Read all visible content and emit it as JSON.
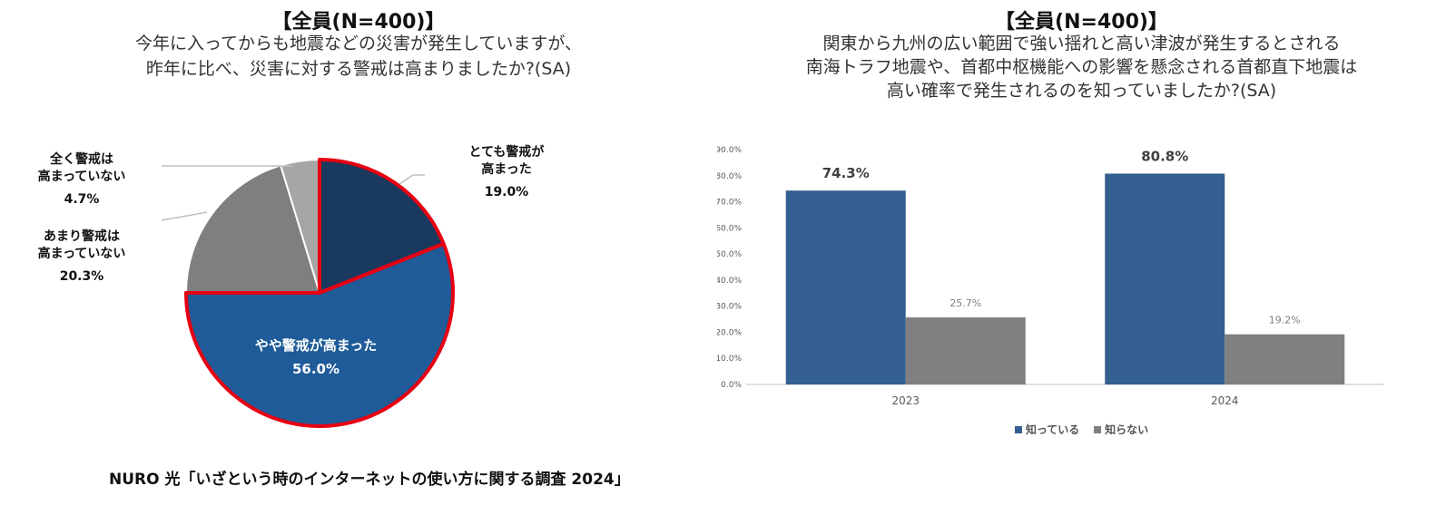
{
  "left": {
    "header": "【全員(N=400)】",
    "question": [
      "今年に入ってからも地震などの災害が発生していますが、",
      "昨年に比べ、災害に対する警戒は高まりましたか?(SA)"
    ]
  },
  "right": {
    "header": "【全員(N=400)】",
    "question": [
      "関東から九州の広い範囲で強い揺れと高い津波が発生するとされる",
      "南海トラフ地震や、首都中枢機能への影響を懸念される首都直下地震は",
      "高い確率で発生されるのを知っていましたか?(SA)"
    ]
  },
  "source": "NURO 光「いざという時のインターネットの使い方に関する調査 2024」",
  "chart_data": [
    {
      "type": "pie",
      "title": "今年に入ってからも地震などの災害が発生していますが、昨年に比べ、災害に対する警戒は高まりましたか?(SA)",
      "slices": [
        {
          "label": "とても警戒が\n高まった",
          "value": 19.0,
          "pct": "19.0%",
          "color": "#193a5e"
        },
        {
          "label": "やや警戒が高まった",
          "value": 56.0,
          "pct": "56.0%",
          "color": "#1f5b99"
        },
        {
          "label": "あまり警戒は\n高まっていない",
          "value": 20.3,
          "pct": "20.3%",
          "color": "#7f7f7f"
        },
        {
          "label": "全く警戒は\n高まっていない",
          "value": 4.7,
          "pct": "4.7%",
          "color": "#a6a6a6"
        }
      ],
      "highlight_color": "#e60012"
    },
    {
      "type": "bar",
      "title": "関東から九州の広い範囲で強い揺れと高い津波が発生するとされる南海トラフ地震や、首都中枢機能への影響を懸念される首都直下地震は高い確率で発生されるのを知っていましたか?(SA)",
      "categories": [
        "2023",
        "2024"
      ],
      "series": [
        {
          "name": "知っている",
          "values": [
            74.3,
            80.8
          ],
          "labels": [
            "74.3%",
            "80.8%"
          ],
          "color": "#335f91"
        },
        {
          "name": "知らない",
          "values": [
            25.7,
            19.2
          ],
          "labels": [
            "25.7%",
            "19.2%"
          ],
          "color": "#808080"
        }
      ],
      "ylim": [
        0,
        90
      ],
      "yticks": [
        0,
        10,
        20,
        30,
        40,
        50,
        60,
        70,
        80,
        90
      ],
      "ytick_labels": [
        "0.0%",
        "10.0%",
        "20.0%",
        "30.0%",
        "40.0%",
        "50.0%",
        "60.0%",
        "70.0%",
        "80.0%",
        "90.0%"
      ],
      "legend": "bottom"
    }
  ]
}
